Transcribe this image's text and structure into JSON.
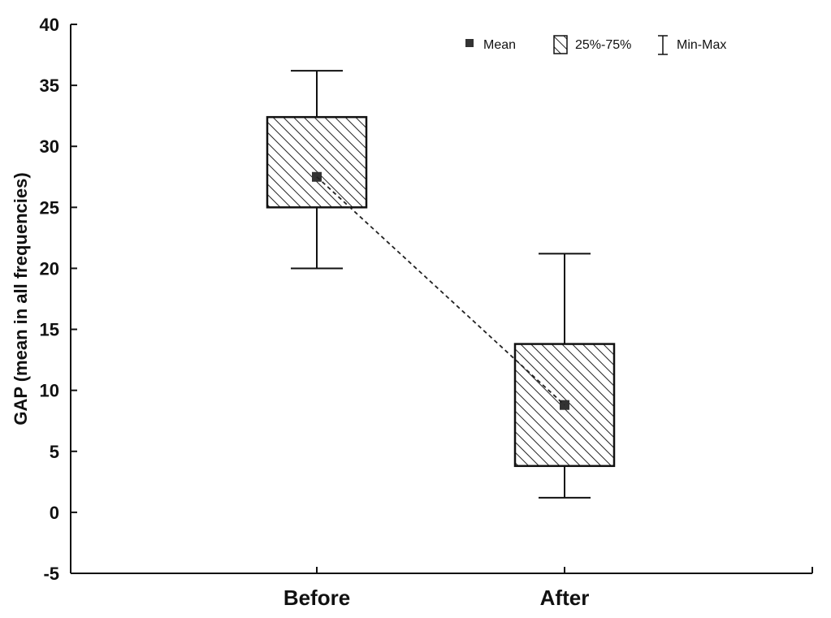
{
  "chart_data": {
    "type": "box",
    "categories": [
      "Before",
      "After"
    ],
    "ylabel": "GAP (mean in all frequencies)",
    "ylim": [
      -5,
      40
    ],
    "yticks": [
      -5,
      0,
      5,
      10,
      15,
      20,
      25,
      30,
      35,
      40
    ],
    "grid": false,
    "legend_position": "top-right",
    "legend": {
      "mean_label": "Mean",
      "box_label": "25%-75%",
      "whisker_label": "Min-Max"
    },
    "boxes": [
      {
        "category": "Before",
        "min": 20,
        "q1": 25,
        "mean": 27.5,
        "q3": 32.4,
        "max": 36.2
      },
      {
        "category": "After",
        "min": 1.2,
        "q1": 3.8,
        "mean": 8.8,
        "q3": 13.8,
        "max": 21.2
      }
    ],
    "mean_line": "dashed"
  }
}
